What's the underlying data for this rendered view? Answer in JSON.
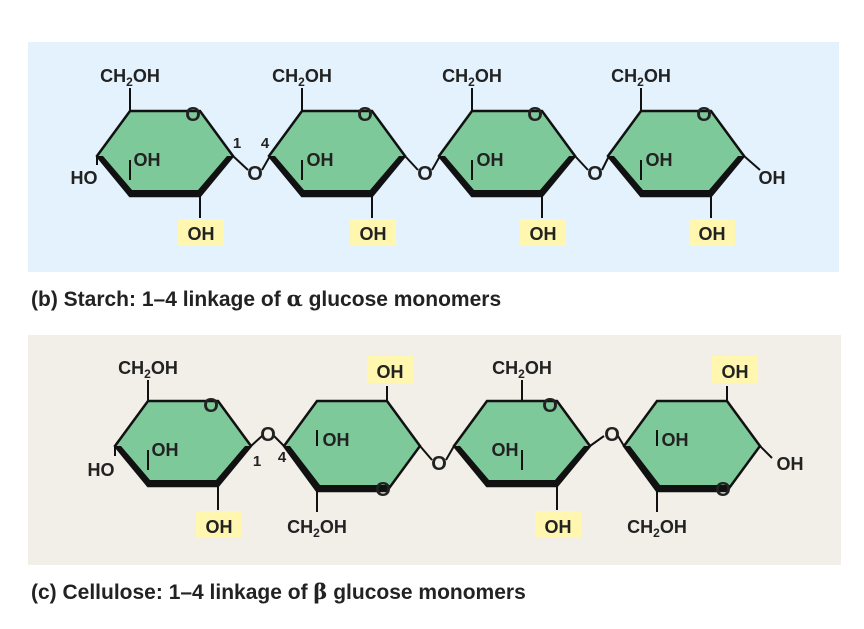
{
  "colors": {
    "starch_bg": "#e3f2fc",
    "cellulose_bg": "#f2efe8",
    "ring_fill": "#7ec99a",
    "highlight": "#fff7b0"
  },
  "starch": {
    "caption_prefix": "(b) Starch: 1–4 linkage of ",
    "caption_greek": "α",
    "caption_suffix": " glucose monomers",
    "labels": {
      "ch2oh": "CH",
      "ch2oh_sub": "2",
      "ch2oh_end": "OH",
      "o": "O",
      "oh": "OH",
      "ho": "HO",
      "link_1": "1",
      "link_4": "4"
    }
  },
  "cellulose": {
    "caption_prefix": "(c) Cellulose: 1–4 linkage of ",
    "caption_greek": "β",
    "caption_suffix": " glucose monomers",
    "labels": {
      "ch2oh": "CH",
      "ch2oh_sub": "2",
      "ch2oh_end": "OH",
      "o": "O",
      "oh": "OH",
      "ho": "HO",
      "link_1": "1",
      "link_4": "4"
    }
  }
}
